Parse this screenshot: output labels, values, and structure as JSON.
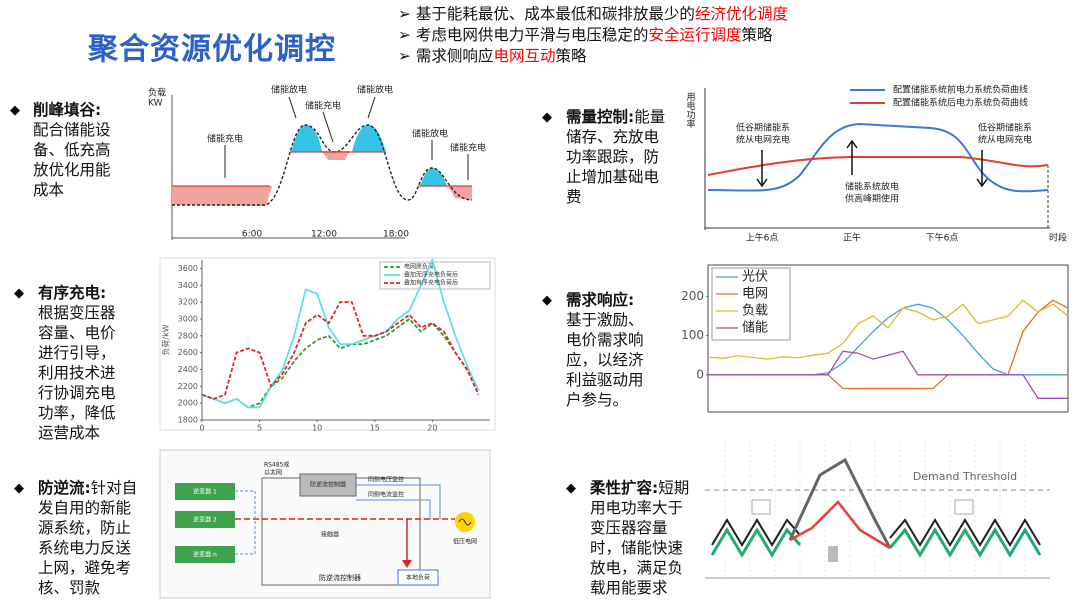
{
  "title": "聚合资源优化调控",
  "bullets": [
    [
      {
        "text": "基于能耗最优、成本最低和碳排放最少的"
      },
      {
        "text": "经济优化调度",
        "color": "#ff0000"
      }
    ],
    [
      {
        "text": "考虑电网供电力平滑与电压稳定的"
      },
      {
        "text": "安全运行调度",
        "color": "#ff0000"
      },
      {
        "text": "策略"
      }
    ],
    [
      {
        "text": "需求侧响应"
      },
      {
        "text": "电网互动",
        "color": "#ff0000"
      },
      {
        "text": "策略"
      }
    ]
  ],
  "sections": [
    {
      "heading": "削峰填谷:",
      "body": "配合储能设备、低充高放优化用能成本",
      "figure": {
        "axis_label": [
          "负载",
          "KW"
        ],
        "labels": [
          "储能放电",
          "储能充电",
          "储能放电",
          "储能充电",
          "储能放电",
          "储能充电"
        ],
        "x_labels": [
          "6:00",
          "12:00",
          "18:00"
        ]
      }
    },
    {
      "heading": "有序充电:",
      "body": "根据变压器容量、电价进行引导，利用技术进行协调充电功率，降低运营成本",
      "chart": {
        "type": "line",
        "y_label": "负荷/kW",
        "xlim": [
          0,
          25
        ],
        "ylim": [
          1800,
          3700
        ],
        "xticks": [
          0,
          5,
          10,
          15,
          20
        ],
        "yticks": [
          1800,
          2000,
          2200,
          2400,
          2600,
          2800,
          3000,
          3200,
          3400,
          3600
        ],
        "x": [
          0,
          1,
          2,
          3,
          4,
          5,
          6,
          7,
          8,
          9,
          10,
          11,
          12,
          13,
          14,
          15,
          16,
          17,
          18,
          19,
          20,
          21,
          22,
          23,
          24
        ],
        "series": [
          {
            "name": "电网原负荷",
            "color": "#2ca02c",
            "dashed": true,
            "values": [
              2100,
              2050,
              2000,
              2050,
              1950,
              2000,
              2200,
              2300,
              2500,
              2650,
              2750,
              2800,
              2650,
              2700,
              2700,
              2750,
              2800,
              2900,
              3000,
              2850,
              2950,
              2800,
              2600,
              2400,
              2150
            ]
          },
          {
            "name": "叠加无序充电负荷后",
            "color": "#5ee0e8",
            "dashed": false,
            "values": [
              2100,
              2050,
              2000,
              2050,
              1950,
              1950,
              2200,
              2400,
              2800,
              3350,
              3300,
              2900,
              2700,
              2700,
              2750,
              2800,
              2850,
              3000,
              3100,
              3400,
              3700,
              3200,
              2800,
              2450,
              2150
            ]
          },
          {
            "name": "叠加有序充电负荷后",
            "color": "#e8202a",
            "dashed": true,
            "values": [
              2100,
              2050,
              2100,
              2600,
              2650,
              2600,
              2200,
              2350,
              2600,
              2950,
              3050,
              2950,
              3200,
              3200,
              2800,
              2800,
              2850,
              2950,
              3050,
              2900,
              2950,
              2850,
              2600,
              2400,
              2100
            ]
          }
        ]
      }
    },
    {
      "heading": "防逆流:",
      "body": "针对自发自用的新能源系统，防止系统电力反送上网，避免考核、罚款",
      "figure": {
        "inverters": [
          "逆变器 1",
          "逆变器 2",
          "逆变器 n"
        ],
        "bus": [
          "RS485或",
          "以太网"
        ],
        "controller": "防逆流控制器",
        "monitors": [
          "同侧电压监控",
          "同侧电流监控"
        ],
        "contactor": "接触器",
        "grid": "低压电网",
        "load": "本地负荷",
        "frame": "防逆流控制器"
      }
    },
    {
      "heading": "需量控制:",
      "body": "能量储存、充放电功率跟踪，防止增加基础电费",
      "figure": {
        "axis_label": "用电功率",
        "legend": [
          "配置储能系统前电力系统负荷曲线",
          "配置储能系统后电力系统负荷曲线"
        ],
        "notes": [
          [
            "低谷期储能系",
            "统从电网充电"
          ],
          [
            "储能系统放电",
            "供高峰期使用"
          ],
          [
            "低谷期储能系",
            "统从电网充电"
          ]
        ],
        "x_labels": [
          "上午6点",
          "正午",
          "下午6点",
          "时段"
        ]
      }
    },
    {
      "heading": "需求响应:",
      "body": "基于激励、电价需求响应，以经济利益驱动用户参与。",
      "chart": {
        "type": "line",
        "ylim": [
          -95,
          280
        ],
        "yticks": [
          0,
          100,
          200
        ],
        "series": [
          {
            "name": "光伏",
            "color": "#4a9fd8",
            "values": [
              0,
              0,
              0,
              0,
              0,
              0,
              0,
              0,
              5,
              30,
              70,
              110,
              145,
              170,
              180,
              170,
              140,
              100,
              55,
              15,
              0,
              0,
              0,
              0,
              0
            ]
          },
          {
            "name": "电网",
            "color": "#e0702a",
            "values": [
              0,
              0,
              0,
              0,
              0,
              0,
              0,
              0,
              0,
              -35,
              -35,
              -35,
              -35,
              -35,
              -35,
              -35,
              0,
              0,
              0,
              0,
              0,
              110,
              160,
              190,
              170
            ]
          },
          {
            "name": "负载",
            "color": "#e8b830",
            "values": [
              45,
              42,
              48,
              44,
              40,
              46,
              43,
              50,
              55,
              80,
              130,
              150,
              120,
              170,
              160,
              140,
              150,
              180,
              130,
              140,
              150,
              190,
              160,
              180,
              150
            ]
          },
          {
            "name": "储能",
            "color": "#9a4fc0",
            "values": [
              0,
              0,
              0,
              0,
              0,
              0,
              0,
              0,
              0,
              60,
              55,
              40,
              50,
              60,
              0,
              0,
              0,
              0,
              0,
              0,
              0,
              0,
              -60,
              -60,
              -60
            ]
          }
        ]
      }
    },
    {
      "heading": "柔性扩容:",
      "body": "短期用电功率大于变压器容量时，储能快速放电，满足负载用能要求",
      "figure": {
        "threshold": "Demand Threshold"
      }
    }
  ]
}
